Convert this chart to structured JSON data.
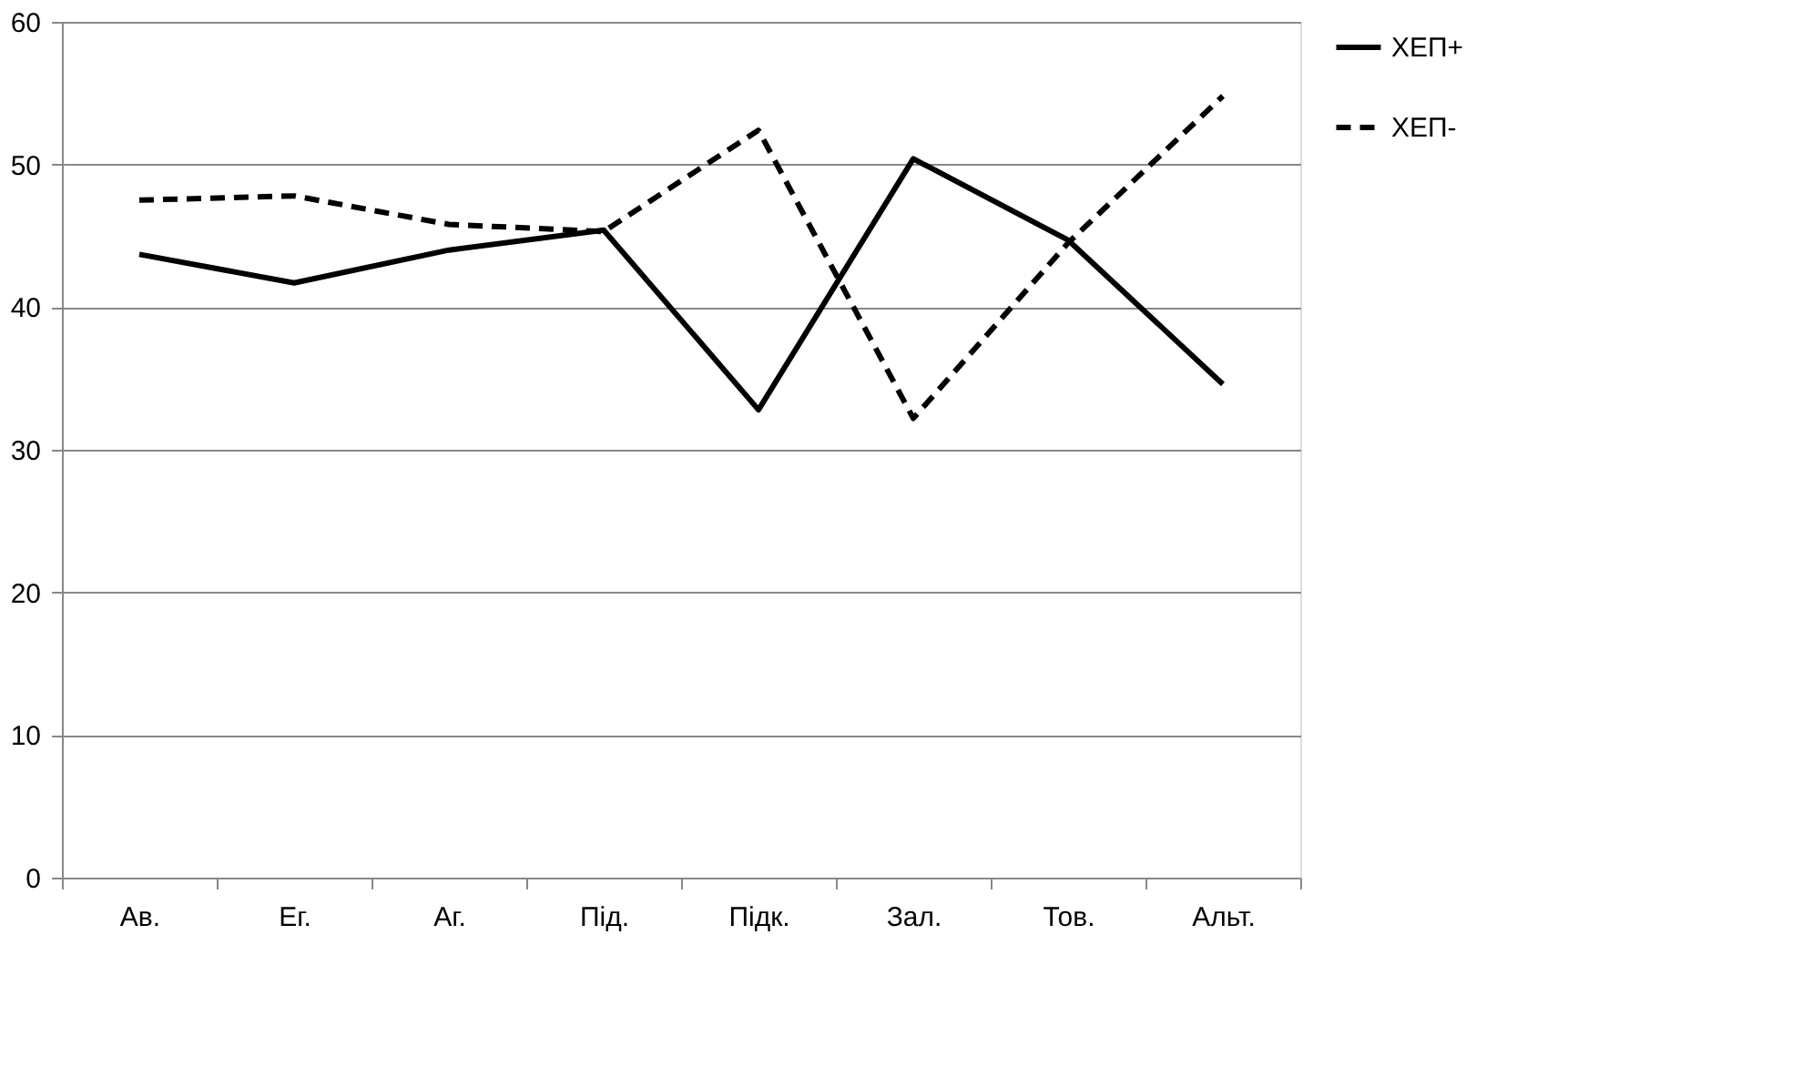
{
  "chart_data": {
    "type": "line",
    "categories": [
      "Ав.",
      "Ег.",
      "Аг.",
      "Під.",
      "Підк.",
      "Зал.",
      "Тов.",
      "Альт."
    ],
    "series": [
      {
        "name": "ХЕП+",
        "color": "#000000",
        "line_style": "solid",
        "values": [
          43.7,
          41.7,
          44.0,
          45.4,
          32.8,
          50.4,
          44.7,
          34.6
        ]
      },
      {
        "name": "ХЕП-",
        "color": "#000000",
        "line_style": "dashed",
        "values": [
          47.5,
          47.8,
          45.8,
          45.3,
          52.4,
          32.2,
          44.5,
          54.8
        ]
      }
    ],
    "ylim": [
      0,
      60
    ],
    "yticks": [
      0,
      10,
      20,
      30,
      40,
      50,
      60
    ],
    "grid": "y",
    "legend": "right",
    "marker": "none"
  }
}
